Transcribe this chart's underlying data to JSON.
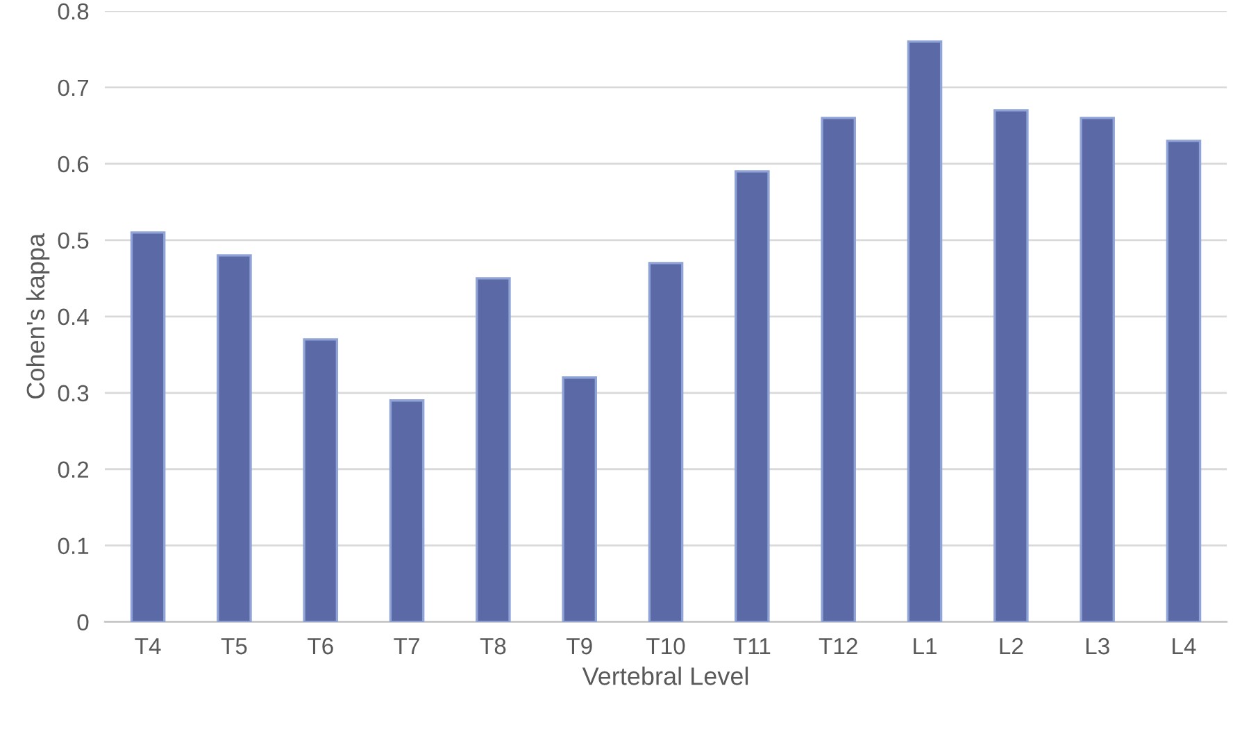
{
  "chart_data": {
    "type": "bar",
    "xlabel": "Vertebral Level",
    "ylabel": "Cohen's kappa",
    "categories": [
      "T4",
      "T5",
      "T6",
      "T7",
      "T8",
      "T9",
      "T10",
      "T11",
      "T12",
      "L1",
      "L2",
      "L3",
      "L4"
    ],
    "values": [
      0.51,
      0.48,
      0.37,
      0.29,
      0.45,
      0.32,
      0.47,
      0.59,
      0.66,
      0.76,
      0.67,
      0.66,
      0.63
    ],
    "color": "#5b6aa6",
    "ylim": [
      0,
      0.8
    ],
    "yticks": [
      {
        "value": 0,
        "label": "0"
      },
      0.1,
      0.2,
      0.3,
      0.4,
      0.5,
      0.6,
      0.7,
      0.8
    ],
    "grid": "y"
  }
}
